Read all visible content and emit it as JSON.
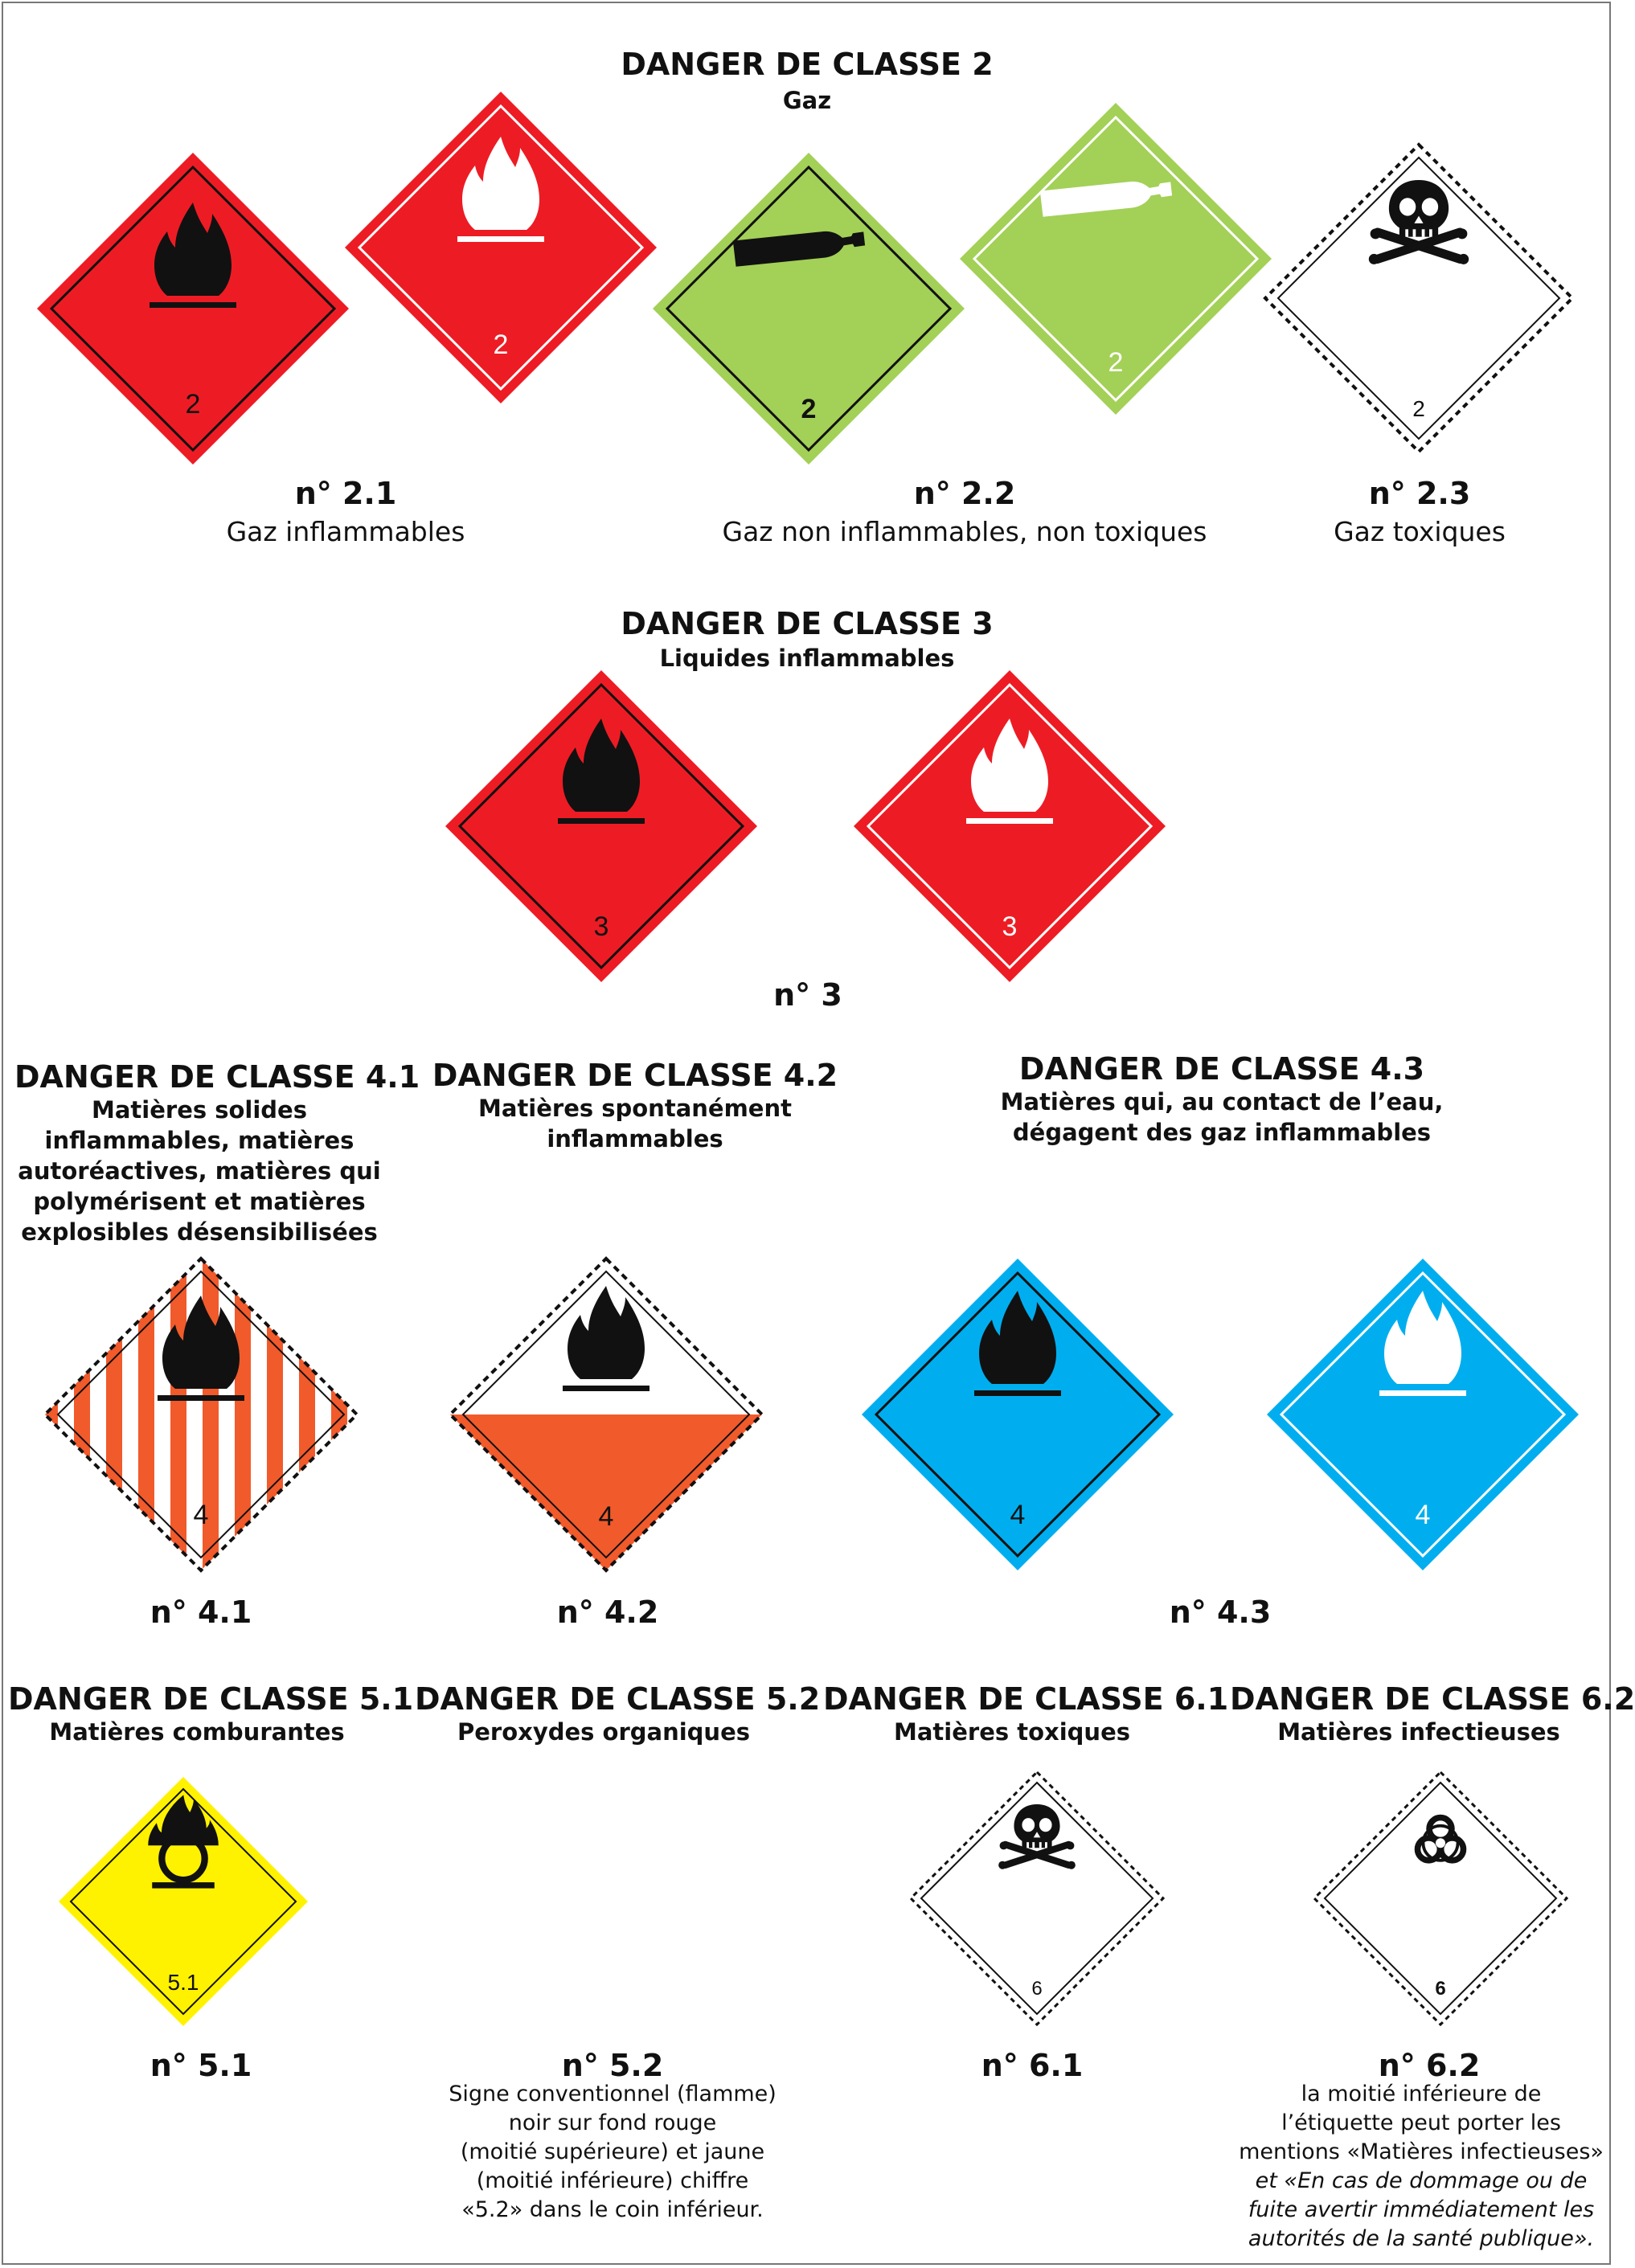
{
  "class2": {
    "title": "DANGER DE CLASSE 2",
    "subtitle": "Gaz",
    "label_number": "2",
    "items": [
      {
        "no": "n° 2.1",
        "desc": "Gaz inflammables"
      },
      {
        "no": "n° 2.2",
        "desc": "Gaz non inflammables, non toxiques"
      },
      {
        "no": "n° 2.3",
        "desc": "Gaz toxiques"
      }
    ]
  },
  "class3": {
    "title": "DANGER DE CLASSE 3",
    "subtitle": "Liquides inflammables",
    "label_number": "3",
    "no": "n° 3"
  },
  "class41": {
    "title": "DANGER DE CLASSE 4.1",
    "subtitle_lines": [
      "Matières solides",
      "inflammables, matières",
      "autoréactives, matières qui",
      "polymérisent et matières",
      "explosibles désensibilisées"
    ],
    "label_number": "4",
    "no": "n° 4.1"
  },
  "class42": {
    "title": "DANGER DE CLASSE 4.2",
    "subtitle_lines": [
      "Matières spontanément",
      "inflammables"
    ],
    "label_number": "4",
    "no": "n° 4.2"
  },
  "class43": {
    "title": "DANGER DE CLASSE 4.3",
    "subtitle_lines": [
      "Matières qui, au contact de l’eau,",
      "dégagent des gaz inflammables"
    ],
    "label_number": "4",
    "no": "n° 4.3"
  },
  "class51": {
    "title": "DANGER DE CLASSE 5.1",
    "subtitle": "Matières comburantes",
    "label_number": "5.1",
    "no": "n° 5.1"
  },
  "class52": {
    "title": "DANGER DE CLASSE 5.2",
    "subtitle": "Peroxydes organiques",
    "no": "n° 5.2",
    "note_lines": [
      "Signe conventionnel (flamme)",
      "noir sur fond rouge",
      "(moitié supérieure) et jaune",
      "(moitié inférieure) chiffre",
      "«5.2» dans le coin inférieur."
    ]
  },
  "class61": {
    "title": "DANGER DE CLASSE 6.1",
    "subtitle": "Matières toxiques",
    "label_number": "6",
    "no": "n° 6.1"
  },
  "class62": {
    "title": "DANGER DE CLASSE 6.2",
    "subtitle": "Matières infectieuses",
    "label_number": "6",
    "no": "n° 6.2",
    "note_lines": [
      "la moitié inférieure de",
      "l’étiquette peut porter les",
      "mentions «Matières infectieuses»",
      "et «En cas de dommage ou de",
      "fuite avertir immédiatement les",
      "autorités de la santé publique»."
    ]
  },
  "colors": {
    "red": "#ed1c24",
    "green": "#a3d057",
    "orange": "#f15a2b",
    "blue": "#00aeef",
    "yellow": "#fff200",
    "black": "#111111"
  }
}
